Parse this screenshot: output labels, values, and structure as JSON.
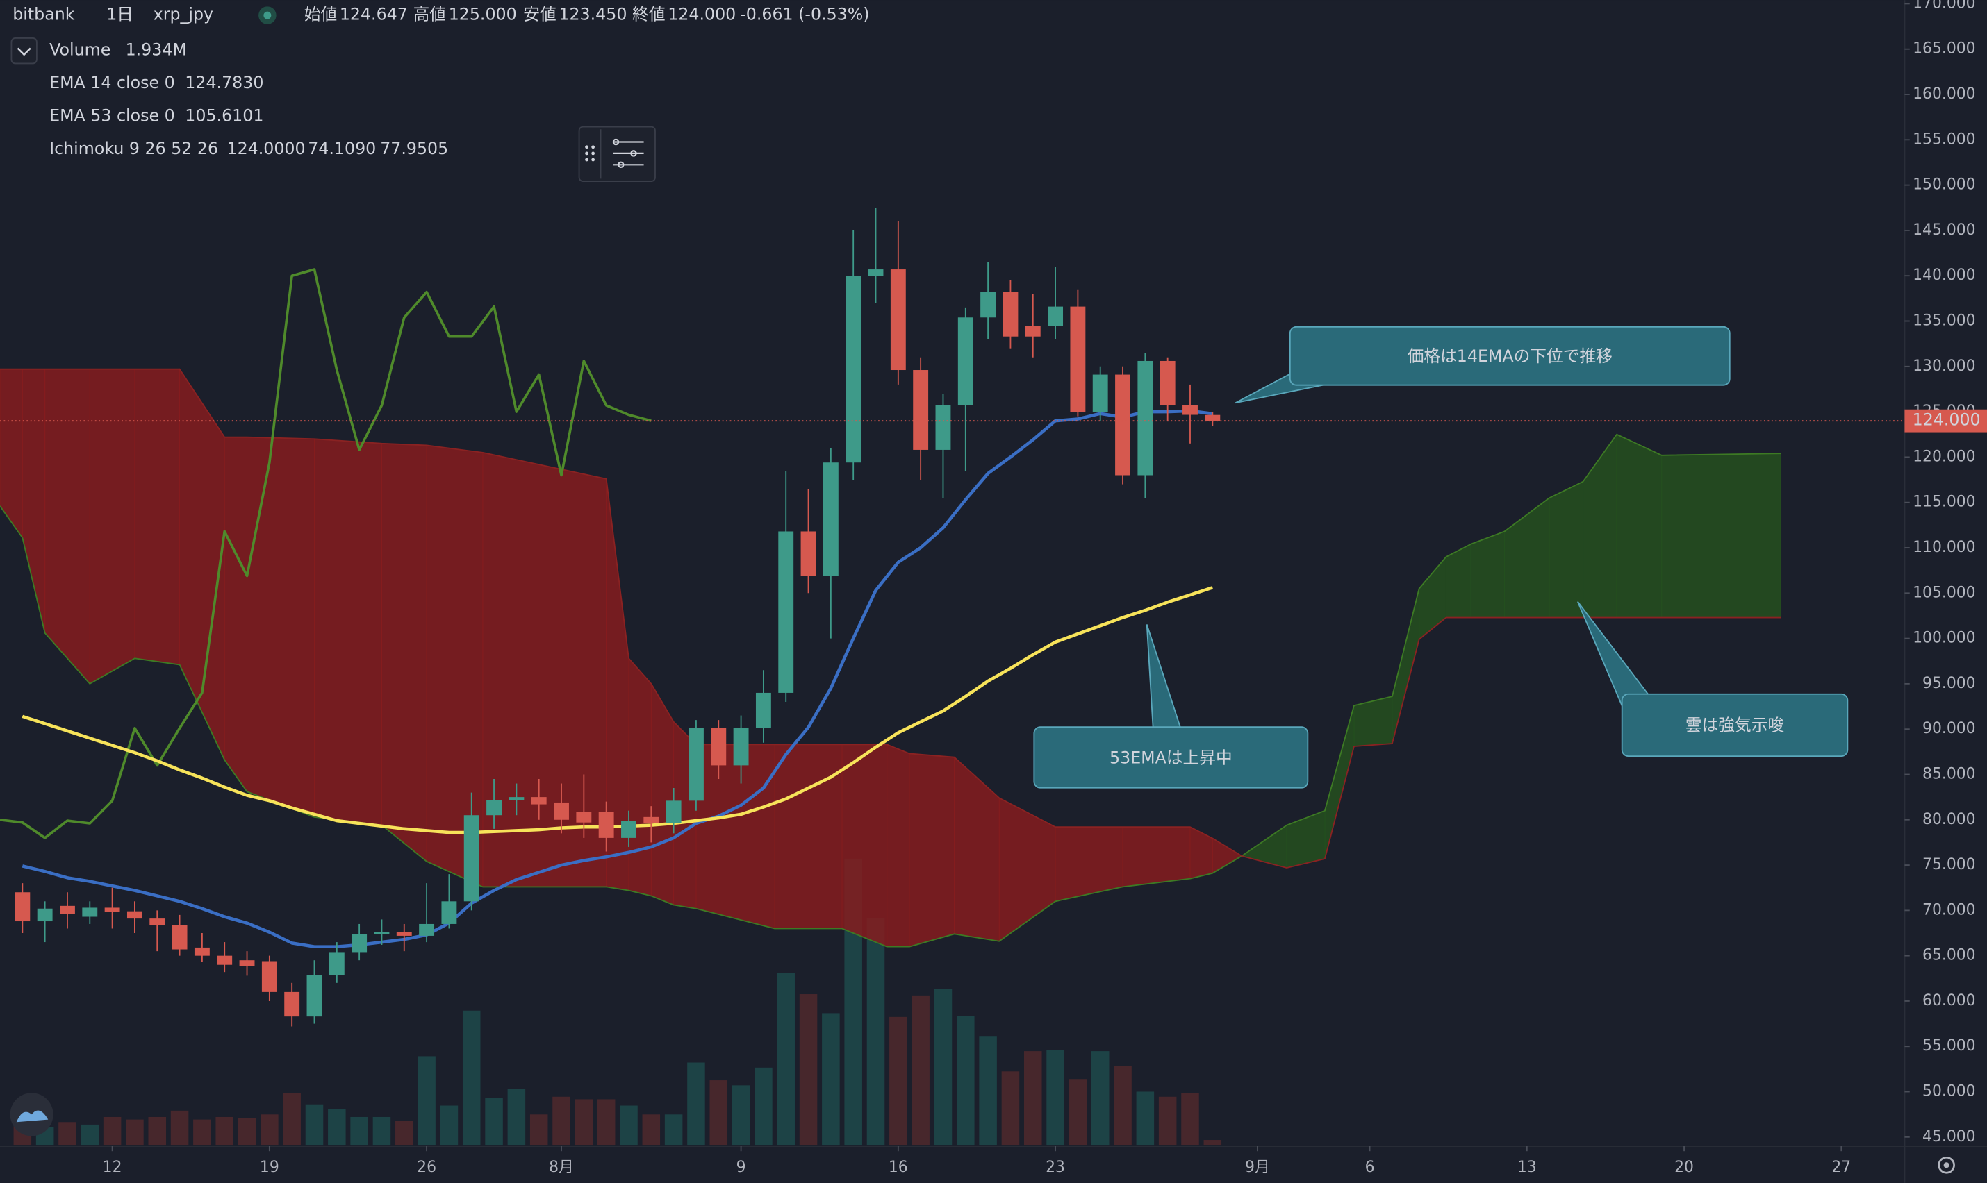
{
  "chart_data": {
    "type": "candlestick",
    "header": {
      "exchange": "bitbank",
      "interval": "1日",
      "symbol": "xrp_jpy",
      "open_name": "始値",
      "open": "124.647",
      "high_name": "高値",
      "high": "125.000",
      "low_name": "安値",
      "low": "123.450",
      "close_name": "終値",
      "close": "124.000",
      "change": "-0.661 (-0.53%)"
    },
    "x": [
      8,
      9,
      10,
      11,
      12,
      13,
      14,
      15,
      16,
      17,
      18,
      19,
      20,
      21,
      22,
      23,
      24,
      25,
      26,
      27,
      28,
      29,
      30,
      31,
      32,
      33,
      34,
      35,
      36,
      37,
      38,
      39,
      40,
      41,
      42,
      43,
      44,
      45,
      46,
      47,
      48,
      49,
      50,
      51,
      52,
      53,
      54,
      55,
      56,
      57,
      58,
      59,
      60,
      61
    ],
    "open": [
      72,
      68.8,
      70.5,
      69.3,
      70.3,
      69.9,
      69.1,
      68.4,
      65.9,
      65,
      64.5,
      64.4,
      61,
      58.3,
      62.9,
      65.4,
      67.4,
      67.6,
      67.2,
      68.5,
      71,
      80.5,
      82.2,
      82.5,
      81.9,
      80.9,
      80.9,
      78,
      80.3,
      79.6,
      82.1,
      90.1,
      86,
      90.1,
      94,
      111.8,
      106.9,
      119.4,
      140,
      140.7,
      129.6,
      120.8,
      125.7,
      135.4,
      138.2,
      134.5,
      134.5,
      136.6,
      125,
      129.1,
      118,
      130.6,
      125.7,
      124.647
    ],
    "high": [
      73,
      71,
      72,
      71,
      72.5,
      71,
      70,
      69.5,
      67.5,
      66.5,
      65.5,
      65,
      62,
      64.5,
      66.5,
      68.5,
      69,
      68.5,
      73,
      74,
      83,
      84.5,
      84,
      84.5,
      84,
      85,
      82,
      81,
      81.5,
      83.5,
      91,
      91,
      91.5,
      96.5,
      118.5,
      116.5,
      121,
      145,
      147.5,
      146,
      131,
      127,
      136.5,
      141.5,
      139.5,
      138,
      141,
      138.5,
      130,
      130,
      131.5,
      131,
      128,
      125
    ],
    "low": [
      67.5,
      66.5,
      68,
      68.5,
      68,
      67.5,
      65.5,
      65,
      64.3,
      63.2,
      62.8,
      60,
      57.2,
      57.5,
      62,
      64.5,
      66.2,
      65.5,
      66.5,
      68,
      70,
      79,
      80.5,
      80,
      78.5,
      78,
      76.5,
      77,
      77.5,
      78.5,
      81,
      84.5,
      84,
      88.5,
      93,
      105,
      100,
      117.5,
      137,
      128,
      117.5,
      115.5,
      118.5,
      133,
      132,
      131,
      133,
      124.5,
      124,
      117,
      115.5,
      124,
      121.5,
      123.45
    ],
    "close": [
      68.8,
      70.2,
      69.6,
      70.3,
      69.8,
      69.1,
      68.4,
      65.7,
      65,
      64,
      63.9,
      61,
      58.3,
      62.9,
      65.4,
      67.4,
      67.6,
      67.2,
      68.5,
      71,
      80.5,
      82.2,
      82.5,
      81.7,
      80,
      79.7,
      78,
      79.9,
      79.6,
      82.1,
      90.1,
      86,
      90.1,
      94,
      111.8,
      106.9,
      119.4,
      140,
      140.7,
      129.6,
      120.8,
      125.7,
      135.4,
      138.2,
      133.3,
      133.3,
      136.6,
      125,
      129.1,
      118,
      130.6,
      125.7,
      124.661,
      124
    ],
    "up_color": "#3e9a89",
    "down_color": "#d6594f",
    "volume": {
      "name": "Volume",
      "value_label": "1.934M",
      "up_color": "#1d4346",
      "down_color": "#47272c",
      "values": [
        8,
        7,
        9,
        8,
        11,
        10,
        11,
        13.5,
        10,
        11,
        10.5,
        12,
        20.5,
        16,
        14,
        11,
        11,
        9.5,
        35,
        15.5,
        53,
        18.5,
        22,
        12,
        19,
        18,
        18,
        15.5,
        12,
        12,
        32.5,
        25.5,
        23.5,
        30.5,
        68,
        59.5,
        52,
        113,
        89.5,
        50.5,
        59,
        61.5,
        51,
        43,
        29,
        37,
        37.5,
        26,
        37,
        31,
        21,
        19,
        20.5,
        1.934
      ]
    },
    "series": [
      {
        "name": "EMA 14 close 0",
        "value_label": "124.7830",
        "color": "#3a6ec4",
        "values": [
          74.9,
          74.3,
          73.6,
          73.2,
          72.7,
          72.2,
          71.6,
          71,
          70.2,
          69.3,
          68.6,
          67.6,
          66.4,
          66,
          66,
          66.2,
          66.5,
          66.8,
          67.3,
          68.6,
          70.8,
          72.2,
          73.4,
          74.2,
          75,
          75.5,
          75.9,
          76.4,
          77,
          78,
          79.6,
          80.4,
          81.6,
          83.5,
          87.2,
          90.2,
          94.5,
          100,
          105.3,
          108.4,
          110,
          112.2,
          115.3,
          118.2,
          120,
          121.9,
          124,
          124.2,
          124.8,
          124.4,
          125,
          125,
          125.1,
          124.783
        ]
      },
      {
        "name": "EMA 53 close 0",
        "value_label": "105.6101",
        "color": "#f7e35a",
        "values": [
          91.4,
          90.6,
          89.8,
          89,
          88.2,
          87.4,
          86.5,
          85.5,
          84.6,
          83.6,
          82.7,
          82.1,
          81.3,
          80.6,
          79.9,
          79.6,
          79.3,
          79,
          78.8,
          78.6,
          78.6,
          78.7,
          78.8,
          78.9,
          79.1,
          79.2,
          79.2,
          79.3,
          79.4,
          79.6,
          79.9,
          80.2,
          80.6,
          81.4,
          82.3,
          83.5,
          84.7,
          86.3,
          88,
          89.6,
          90.8,
          92,
          93.6,
          95.3,
          96.7,
          98.2,
          99.6,
          100.5,
          101.4,
          102.3,
          103.1,
          104,
          104.8,
          105.6101
        ]
      }
    ],
    "ichimoku": {
      "name": "Ichimoku 9 26 52 26",
      "lagging": {
        "value_label": "124.0000",
        "color": "#4f8a2b",
        "x": [
          7,
          8,
          9,
          10,
          11,
          12,
          13,
          14,
          15,
          16,
          17,
          18,
          19,
          20,
          21,
          22,
          23,
          24,
          25,
          26,
          27,
          28,
          29,
          30,
          31,
          32,
          33,
          34,
          35,
          36
        ],
        "values": [
          80,
          79.7,
          78,
          79.9,
          79.6,
          82.1,
          90.1,
          86,
          90.1,
          94,
          111.8,
          106.9,
          119.4,
          140,
          140.7,
          129.6,
          120.8,
          125.7,
          135.4,
          138.2,
          133.3,
          133.3,
          136.6,
          125,
          129.1,
          118,
          130.6,
          125.7,
          124.661,
          124
        ]
      },
      "cloud_x": [
        7,
        8,
        9,
        11,
        13,
        15,
        17,
        18,
        21,
        24,
        26,
        28.5,
        34,
        35,
        36,
        37,
        38,
        41.5,
        44.5,
        46.5,
        47.5,
        49.5,
        51.5,
        54,
        57,
        60,
        61,
        62.3,
        64.3,
        66,
        67.3,
        69,
        70.2,
        71.4,
        72.5,
        74,
        76,
        77.5,
        79,
        81,
        86.3
      ],
      "leading_a": {
        "value_label": "74.1090",
        "color": "#3d7a24",
        "values": [
          114.6,
          111.1,
          100.6,
          95,
          97.8,
          97.1,
          86.6,
          83.1,
          80.3,
          79.4,
          75.4,
          72.6,
          72.6,
          72.2,
          71.6,
          70.6,
          70.2,
          68,
          68,
          66,
          66,
          67.4,
          66.6,
          71,
          72.6,
          73.5,
          74.109,
          76,
          79.4,
          81,
          92.6,
          93.6,
          105.5,
          109,
          110.4,
          111.8,
          115.5,
          117.3,
          122.5,
          120.2,
          120.4
        ]
      },
      "leading_b": {
        "value_label": "77.9505",
        "color": "#8a2222",
        "values": [
          129.7,
          129.7,
          129.7,
          129.7,
          129.7,
          129.7,
          122.2,
          122.2,
          122,
          121.5,
          121.3,
          120.5,
          117.6,
          97.8,
          95,
          90.8,
          88.3,
          88.3,
          88.3,
          88.3,
          87.3,
          86.9,
          82.4,
          79.2,
          79.2,
          79.2,
          77.9505,
          76,
          74.7,
          75.7,
          88.1,
          88.4,
          99.9,
          102.3,
          102.3,
          102.3,
          102.3,
          102.3,
          102.3,
          102.3,
          102.3
        ]
      },
      "bull_fill": "#24501f",
      "bear_fill": "#851c1e"
    },
    "annotations": [
      "価格は14EMAの下位で推移",
      "53EMAは上昇中",
      "雲は強気示唆"
    ],
    "xlim": [
      7,
      91.82
    ],
    "xticks": [
      12,
      19,
      26,
      {
        "value": 32,
        "label": "8月"
      },
      {
        "value": 40,
        "label": "9"
      },
      {
        "value": 47,
        "label": "16"
      },
      {
        "value": 54,
        "label": "23"
      },
      {
        "value": 63,
        "label": "9月"
      },
      {
        "value": 68,
        "label": "6"
      },
      {
        "value": 75,
        "label": "13"
      },
      {
        "value": 82,
        "label": "20"
      },
      {
        "value": 89,
        "label": "27"
      }
    ],
    "ylim": [
      44,
      170.4
    ],
    "yticks": [
      {
        "value": 45,
        "label": "45.000"
      },
      {
        "value": 50,
        "label": "50.000"
      },
      {
        "value": 55,
        "label": "55.000"
      },
      {
        "value": 60,
        "label": "60.000"
      },
      {
        "value": 65,
        "label": "65.000"
      },
      {
        "value": 70,
        "label": "70.000"
      },
      {
        "value": 75,
        "label": "75.000"
      },
      {
        "value": 80,
        "label": "80.000"
      },
      {
        "value": 85,
        "label": "85.000"
      },
      {
        "value": 90,
        "label": "90.000"
      },
      {
        "value": 95,
        "label": "95.000"
      },
      {
        "value": 100,
        "label": "100.000"
      },
      {
        "value": 105,
        "label": "105.000"
      },
      {
        "value": 110,
        "label": "110.000"
      },
      {
        "value": 115,
        "label": "115.000"
      },
      {
        "value": 120,
        "label": "120.000"
      },
      {
        "value": 125,
        "label": "125.000"
      },
      {
        "value": 130,
        "label": "130.000"
      },
      {
        "value": 135,
        "label": "135.000"
      },
      {
        "value": 140,
        "label": "140.000"
      },
      {
        "value": 145,
        "label": "145.000"
      },
      {
        "value": 150,
        "label": "150.000"
      },
      {
        "value": 155,
        "label": "155.000"
      },
      {
        "value": 160,
        "label": "160.000"
      },
      {
        "value": 165,
        "label": "165.000"
      },
      {
        "value": 170,
        "label": "170.000"
      }
    ]
  }
}
